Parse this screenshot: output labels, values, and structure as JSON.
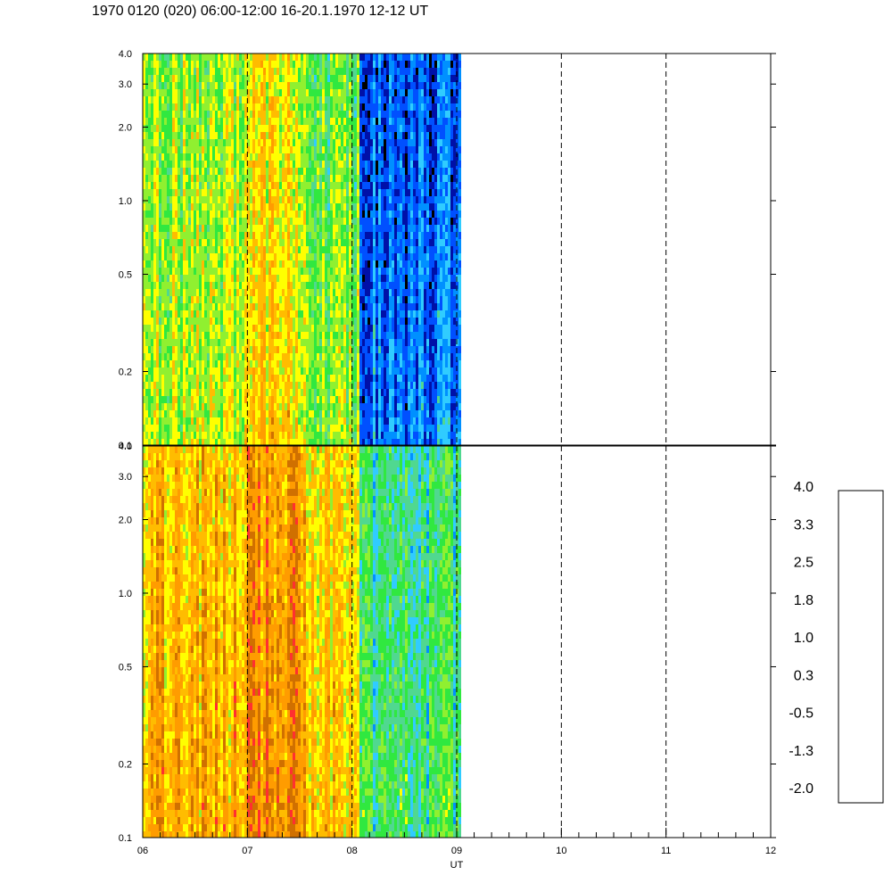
{
  "title": "1970 0120 (020) 06:00-12:00 16-20.1.1970  12-12 UT",
  "chart_data": {
    "type": "heatmap",
    "xlabel": "UT",
    "x_ticks": [
      "06",
      "07",
      "08",
      "09",
      "10",
      "11",
      "12"
    ],
    "xlim": [
      6,
      12
    ],
    "data_coverage_hours": [
      6,
      9.03
    ],
    "vertical_dashed_lines_hours": [
      7,
      8,
      9,
      10,
      11
    ],
    "y_scale": "log",
    "ylim": [
      0.1,
      4.0
    ],
    "y_ticks": [
      "0.1",
      "0.2",
      "0.5",
      "1.0",
      "2.0",
      "3.0",
      "4.0"
    ],
    "panels": [
      {
        "name": "",
        "dominant_levels_by_hour": [
          {
            "from": 6.0,
            "to": 6.95,
            "level": 1.0
          },
          {
            "from": 6.95,
            "to": 7.55,
            "level": 1.4
          },
          {
            "from": 7.55,
            "to": 8.05,
            "level": 0.8
          },
          {
            "from": 8.05,
            "to": 9.03,
            "level": -0.8
          }
        ]
      },
      {
        "name": "",
        "dominant_levels_by_hour": [
          {
            "from": 6.0,
            "to": 6.95,
            "level": 1.8
          },
          {
            "from": 6.95,
            "to": 7.55,
            "level": 2.2
          },
          {
            "from": 7.55,
            "to": 8.05,
            "level": 1.6
          },
          {
            "from": 8.05,
            "to": 9.03,
            "level": 0.3
          }
        ]
      }
    ],
    "colorbar": {
      "labels": [
        "4.0",
        "3.3",
        "2.5",
        "1.8",
        "1.0",
        "0.3",
        "-0.5",
        "-1.3",
        "-2.0"
      ],
      "range": [
        -2.0,
        4.0
      ],
      "colors": [
        "#000000",
        "#0010a8",
        "#0050ff",
        "#0090ff",
        "#30ccff",
        "#50d890",
        "#30e840",
        "#90f030",
        "#ffff00",
        "#ffbc00",
        "#ff9c00",
        "#d07000",
        "#ff3030",
        "#ff6060",
        "#ff9c9c",
        "#ffffff"
      ]
    }
  }
}
